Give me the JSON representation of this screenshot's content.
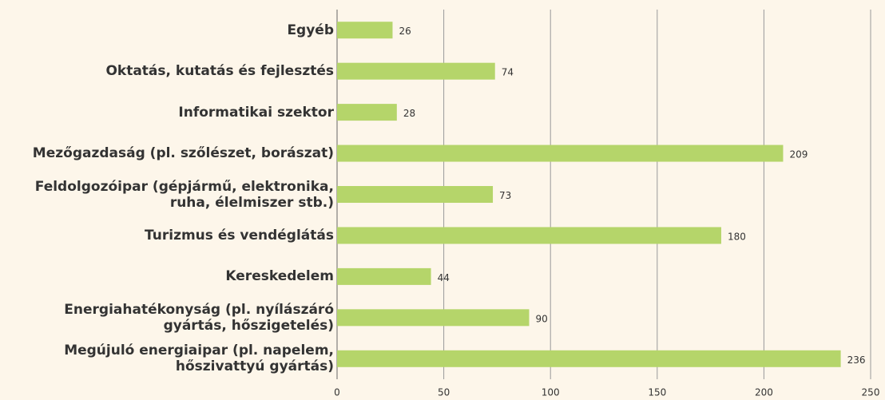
{
  "chart_data": {
    "type": "barh",
    "categories": [
      "Egyéb",
      "Oktatás, kutatás és fejlesztés",
      "Informatikai szektor",
      "Mezőgazdaság (pl. szőlészet, borászat)",
      "Feldolgozóipar (gépjármű, elektronika,\nruha, élelmiszer stb.)",
      "Turizmus és vendéglátás",
      "Kereskedelem",
      "Energiahatékonyság (pl. nyílászáró\ngyártás, hőszigetelés)",
      "Megújuló energiaipar (pl. napelem,\nhőszivattyú gyártás)"
    ],
    "values": [
      26,
      74,
      28,
      209,
      73,
      180,
      44,
      90,
      236
    ],
    "color": "#b5d56a",
    "xlim": [
      0,
      250
    ],
    "xticks": [
      0,
      50,
      100,
      150,
      200,
      250
    ],
    "grid": true
  }
}
